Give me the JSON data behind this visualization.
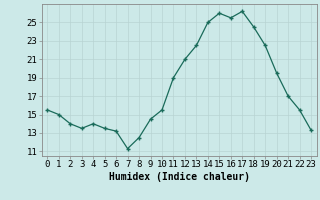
{
  "x": [
    0,
    1,
    2,
    3,
    4,
    5,
    6,
    7,
    8,
    9,
    10,
    11,
    12,
    13,
    14,
    15,
    16,
    17,
    18,
    19,
    20,
    21,
    22,
    23
  ],
  "y": [
    15.5,
    15.0,
    14.0,
    13.5,
    14.0,
    13.5,
    13.2,
    11.3,
    12.5,
    14.5,
    15.5,
    19.0,
    21.0,
    22.5,
    25.0,
    26.0,
    25.5,
    26.2,
    24.5,
    22.5,
    19.5,
    17.0,
    15.5,
    13.3
  ],
  "xlabel": "Humidex (Indice chaleur)",
  "ylabel_ticks": [
    11,
    13,
    15,
    17,
    19,
    21,
    23,
    25
  ],
  "ylim": [
    10.5,
    27.0
  ],
  "xlim": [
    -0.5,
    23.5
  ],
  "bg_color": "#cce9e8",
  "grid_color": "#b8d4d3",
  "line_color": "#1a6b5a",
  "marker_color": "#1a6b5a",
  "xlabel_fontsize": 7,
  "tick_fontsize": 6.5
}
